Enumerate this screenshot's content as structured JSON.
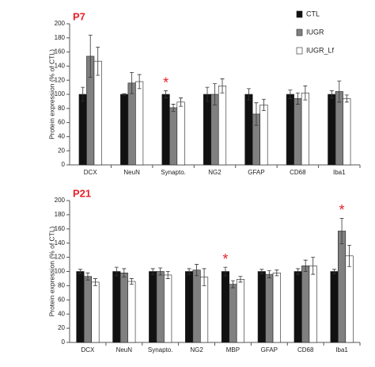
{
  "chart_data": [
    {
      "type": "bar",
      "title": "P7",
      "y_label": "Protein expression (% of CTL)",
      "categories": [
        "DCX",
        "NeuN",
        "Synapto.",
        "NG2",
        "GFAP",
        "CD68",
        "Iba1"
      ],
      "series": [
        {
          "name": "CTL",
          "color": "#111111",
          "values": [
            100,
            100,
            100,
            100,
            100,
            100,
            100
          ],
          "errors": [
            10,
            1,
            5,
            10,
            8,
            6,
            5
          ]
        },
        {
          "name": "IUGR",
          "color": "#808080",
          "values": [
            154,
            116,
            81,
            100,
            72,
            94,
            104
          ],
          "errors": [
            30,
            15,
            5,
            15,
            16,
            8,
            15
          ]
        },
        {
          "name": "IUGR_Lf",
          "color": "#ffffff",
          "values": [
            147,
            118,
            89,
            112,
            85,
            102,
            94
          ],
          "errors": [
            20,
            10,
            6,
            10,
            8,
            10,
            5
          ]
        }
      ],
      "annotations": [
        {
          "text": "*",
          "category": "Synapto.",
          "series": "CTL"
        }
      ],
      "ylim": [
        0,
        200
      ],
      "yticks": [
        0,
        20,
        40,
        60,
        80,
        100,
        120,
        140,
        160,
        180,
        200
      ],
      "legend": "upper right"
    },
    {
      "type": "bar",
      "title": "P21",
      "y_label": "Protein expression (% of CTL)",
      "categories": [
        "DCX",
        "NeuN",
        "Synapto.",
        "NG2",
        "MBP",
        "GFAP",
        "CD68",
        "Iba1"
      ],
      "series": [
        {
          "name": "CTL",
          "color": "#111111",
          "values": [
            100,
            100,
            100,
            100,
            100,
            100,
            100,
            100
          ],
          "errors": [
            3,
            6,
            4,
            4,
            6,
            3,
            4,
            3
          ]
        },
        {
          "name": "IUGR",
          "color": "#808080",
          "values": [
            93,
            98,
            100,
            102,
            82,
            96,
            108,
            157
          ],
          "errors": [
            5,
            6,
            5,
            8,
            5,
            5,
            8,
            18
          ]
        },
        {
          "name": "IUGR_Lf",
          "color": "#ffffff",
          "values": [
            85,
            86,
            95,
            92,
            89,
            98,
            108,
            122
          ],
          "errors": [
            5,
            4,
            5,
            12,
            4,
            4,
            12,
            15
          ]
        }
      ],
      "annotations": [
        {
          "text": "*",
          "category": "MBP",
          "series": "CTL"
        },
        {
          "text": "*",
          "category": "Iba1",
          "series": "IUGR"
        }
      ],
      "ylim": [
        0,
        200
      ],
      "yticks": [
        0,
        20,
        40,
        60,
        80,
        100,
        120,
        140,
        160,
        180,
        200
      ]
    }
  ]
}
